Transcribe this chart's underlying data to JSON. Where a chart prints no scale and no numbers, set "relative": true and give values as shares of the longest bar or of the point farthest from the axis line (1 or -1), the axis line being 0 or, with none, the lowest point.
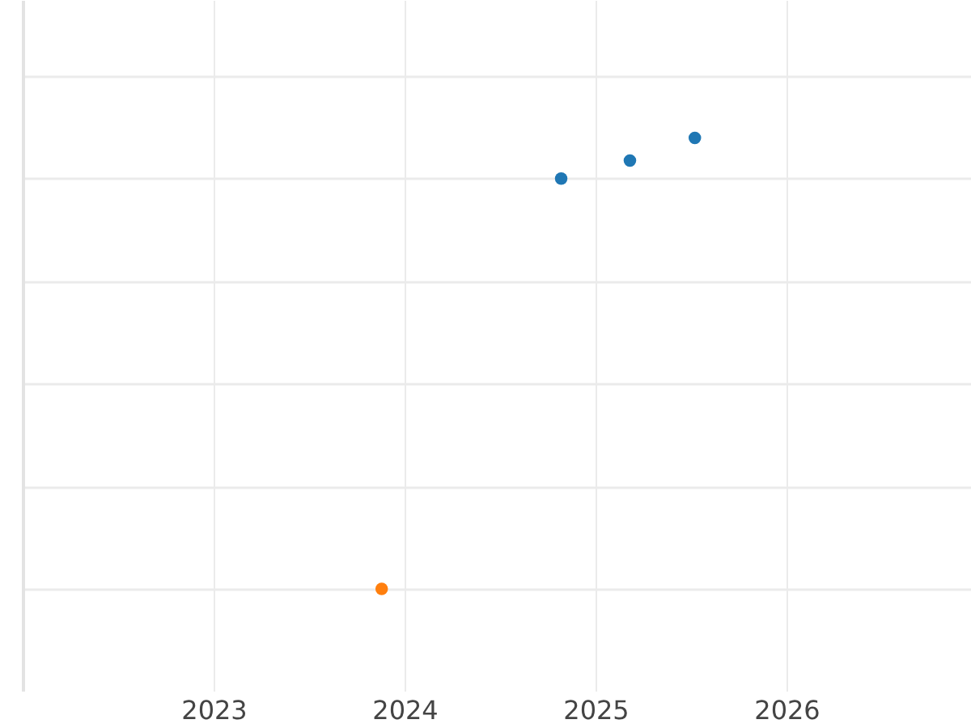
{
  "chart_data": {
    "type": "scatter",
    "relative": true,
    "marker": "circle",
    "grid": true,
    "xlim": [
      2022,
      2027
    ],
    "xticks": [
      2023,
      2024,
      2025,
      2026
    ],
    "series": [
      {
        "color": "#1f77b4",
        "x": [
          2024.82,
          2025.18,
          2025.52
        ],
        "values": [
          0.91,
          0.95,
          1
        ]
      },
      {
        "color": "#ff7f0e",
        "x": [
          2023.88
        ],
        "values": [
          0
        ]
      }
    ]
  }
}
